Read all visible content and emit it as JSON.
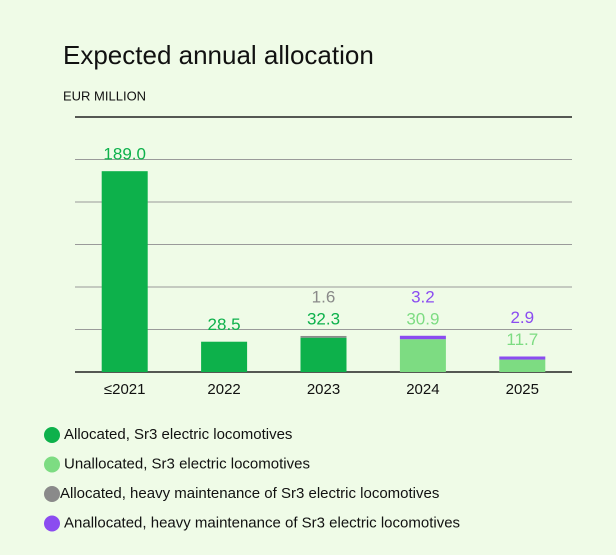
{
  "chart_data": {
    "type": "bar",
    "stacked": true,
    "title": "Expected annual allocation",
    "subtitle": "EUR MILLION",
    "categories": [
      "≤2021",
      "2022",
      "2023",
      "2024",
      "2025"
    ],
    "series": [
      {
        "name": "Allocated, Sr3 electric locomotives",
        "color": "#0db14b",
        "values": [
          189.0,
          28.5,
          32.3,
          null,
          null
        ],
        "value_labels": [
          "189.0",
          "28.5",
          "32.3",
          null,
          null
        ]
      },
      {
        "name": "Unallocated, Sr3 electric locomotives",
        "color": "#7ddc82",
        "values": [
          null,
          null,
          null,
          30.9,
          11.7
        ],
        "value_labels": [
          null,
          null,
          null,
          "30.9",
          "11.7"
        ]
      },
      {
        "name": "Allocated, heavy maintenance of Sr3 electric locomotives",
        "color": "#8a8a8a",
        "values": [
          null,
          null,
          1.6,
          null,
          null
        ],
        "value_labels": [
          null,
          null,
          "1.6",
          null,
          null
        ]
      },
      {
        "name": "Anallocated, heavy maintenance of Sr3 electric locomotives",
        "color": "#8b4cf0",
        "values": [
          null,
          null,
          null,
          3.2,
          2.9
        ],
        "value_labels": [
          null,
          null,
          null,
          "3.2",
          "2.9"
        ]
      }
    ],
    "ylim": [
      0,
      240
    ],
    "yticks": [
      0,
      40,
      80,
      120,
      160,
      200,
      240
    ],
    "grid": true
  }
}
